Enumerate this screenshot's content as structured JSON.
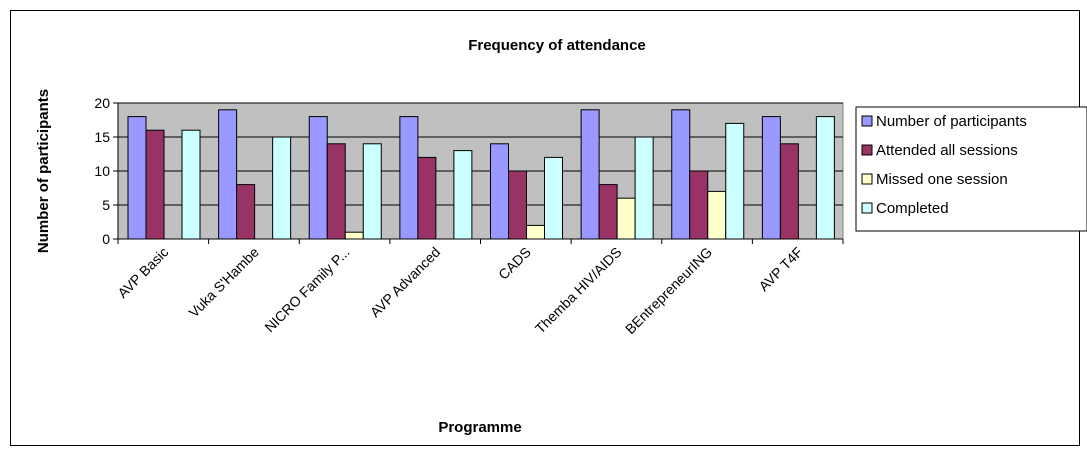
{
  "chart_data": {
    "type": "bar",
    "title": "Frequency of attendance",
    "xlabel": "Programme",
    "ylabel": "Number of participants",
    "ylim": [
      0,
      20
    ],
    "yticks": [
      0,
      5,
      10,
      15,
      20
    ],
    "grid": true,
    "legend_position": "right",
    "plot_background": "#c0c0c0",
    "categories": [
      "AVP Basic",
      "Vuka S'Hambe",
      "NICRO Family P...",
      "AVP Advanced",
      "CADS",
      "Themba HIV/AIDS",
      "BEntrepreneurING",
      "AVP T4F"
    ],
    "series": [
      {
        "name": "Number of participants",
        "color": "#9999ff",
        "values": [
          18,
          19,
          18,
          18,
          14,
          19,
          19,
          18
        ]
      },
      {
        "name": "Attended all sessions",
        "color": "#993366",
        "values": [
          16,
          8,
          14,
          12,
          10,
          8,
          10,
          14
        ]
      },
      {
        "name": "Missed one session",
        "color": "#ffffcc",
        "values": [
          0,
          0,
          1,
          0,
          2,
          6,
          7,
          0
        ]
      },
      {
        "name": "Completed",
        "color": "#ccffff",
        "values": [
          16,
          15,
          14,
          13,
          12,
          15,
          17,
          18
        ]
      }
    ]
  }
}
